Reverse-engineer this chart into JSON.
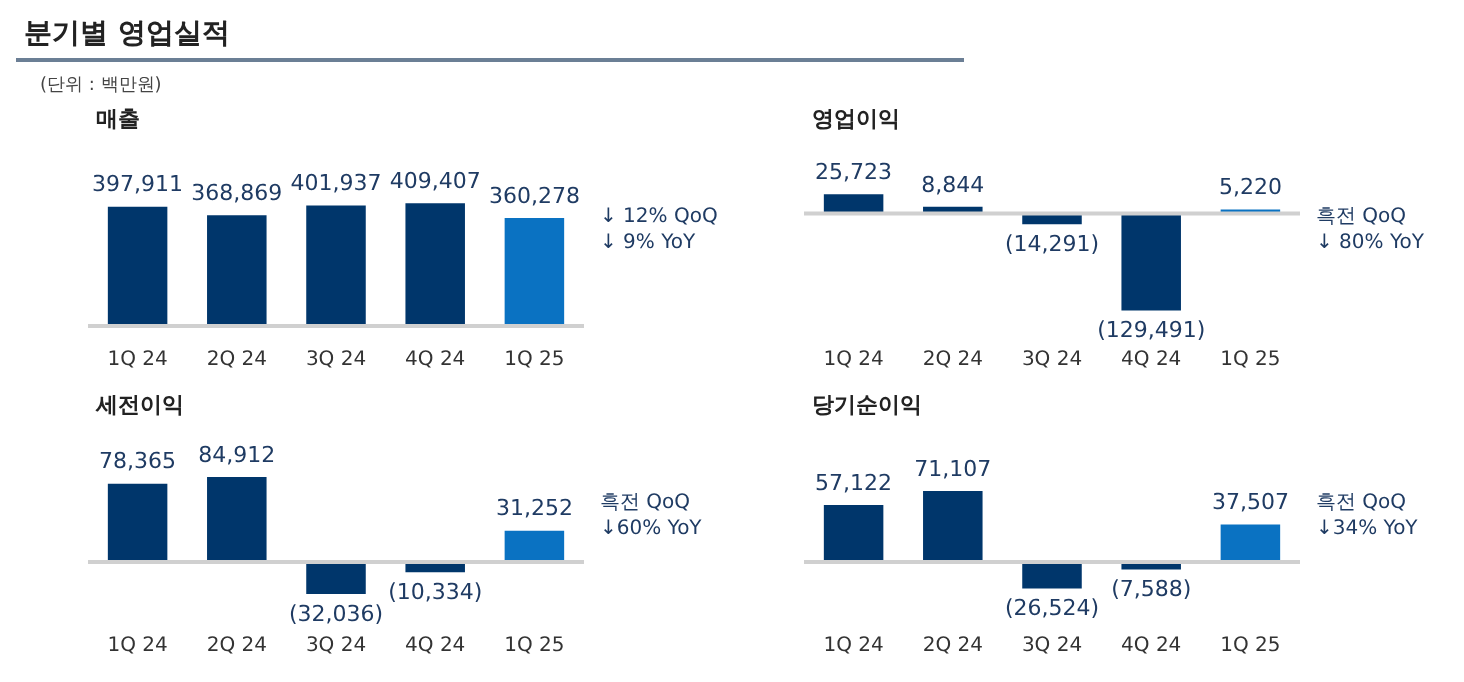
{
  "chart_data": [
    {
      "type": "other",
      "title": "분기별 영업실적",
      "subtitle": "(단위 : 백만원)"
    },
    {
      "type": "bar",
      "title": "매출",
      "categories": [
        "1Q 24",
        "2Q 24",
        "3Q 24",
        "4Q 24",
        "1Q 25"
      ],
      "values": [
        397911,
        368869,
        401937,
        409407,
        360278
      ],
      "colors": [
        "#00366b",
        "#00366b",
        "#00366b",
        "#00366b",
        "#0a72c2"
      ],
      "value_labels": [
        "397,911",
        "368,869",
        "401,937",
        "409,407",
        "360,278"
      ],
      "annotations": [
        "↓ 12% QoQ",
        "↓ 9% YoY"
      ]
    },
    {
      "type": "bar",
      "title": "영업이익",
      "categories": [
        "1Q 24",
        "2Q 24",
        "3Q 24",
        "4Q 24",
        "1Q 25"
      ],
      "values": [
        25723,
        8844,
        -14291,
        -129491,
        5220
      ],
      "colors": [
        "#00366b",
        "#00366b",
        "#00366b",
        "#00366b",
        "#0a72c2"
      ],
      "value_labels": [
        "25,723",
        "8,844",
        "(14,291)",
        "(129,491)",
        "5,220"
      ],
      "annotations": [
        "흑전 QoQ",
        "↓ 80% YoY"
      ]
    },
    {
      "type": "bar",
      "title": "세전이익",
      "categories": [
        "1Q 24",
        "2Q 24",
        "3Q 24",
        "4Q 24",
        "1Q 25"
      ],
      "values": [
        78365,
        84912,
        -32036,
        -10334,
        31252
      ],
      "colors": [
        "#00366b",
        "#00366b",
        "#00366b",
        "#00366b",
        "#0a72c2"
      ],
      "value_labels": [
        "78,365",
        "84,912",
        "(32,036)",
        "(10,334)",
        "31,252"
      ],
      "annotations": [
        "흑전 QoQ",
        "↓60% YoY"
      ]
    },
    {
      "type": "bar",
      "title": "당기순이익",
      "categories": [
        "1Q 24",
        "2Q 24",
        "3Q 24",
        "4Q 24",
        "1Q 25"
      ],
      "values": [
        57122,
        71107,
        -26524,
        -7588,
        37507
      ],
      "colors": [
        "#00366b",
        "#00366b",
        "#00366b",
        "#00366b",
        "#0a72c2"
      ],
      "value_labels": [
        "57,122",
        "71,107",
        "(26,524)",
        "(7,588)",
        "37,507"
      ],
      "annotations": [
        "흑전 QoQ",
        "↓34% YoY"
      ]
    }
  ]
}
